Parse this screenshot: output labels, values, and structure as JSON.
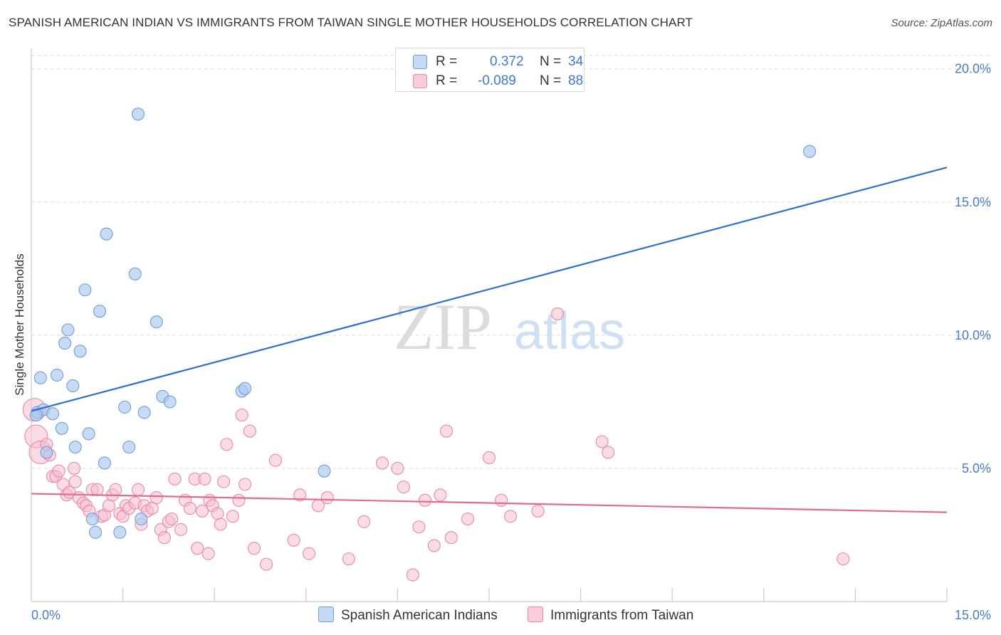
{
  "title": "SPANISH AMERICAN INDIAN VS IMMIGRANTS FROM TAIWAN SINGLE MOTHER HOUSEHOLDS CORRELATION CHART",
  "source": "Source: ZipAtlas.com",
  "watermark": {
    "zip": "ZIP",
    "atlas": "atlas"
  },
  "legend": {
    "series1": {
      "r_label": "R =",
      "r_value": "0.372",
      "n_label": "N =",
      "n_value": "34"
    },
    "series2": {
      "r_label": "R =",
      "r_value": "-0.089",
      "n_label": "N =",
      "n_value": "88"
    }
  },
  "colors": {
    "blue_fill": "#aac8f0",
    "blue_stroke": "#6f9fd8",
    "blue_line": "#2f6fcc",
    "pink_fill": "#f6bfd0",
    "pink_stroke": "#e88aa8",
    "pink_line": "#e36a95",
    "axis_text": "#4a7cc4",
    "grid": "#dddddd"
  },
  "chart_data": {
    "type": "scatter",
    "title": "SPANISH AMERICAN INDIAN VS IMMIGRANTS FROM TAIWAN SINGLE MOTHER HOUSEHOLDS CORRELATION CHART",
    "xlabel": "",
    "ylabel": "Single Mother Households",
    "xlim": [
      0,
      15
    ],
    "ylim": [
      0,
      20.5
    ],
    "x_tick_labels": [
      "0.0%",
      "15.0%"
    ],
    "y_ticks": [
      5,
      10,
      15,
      20
    ],
    "y_tick_labels": [
      "5.0%",
      "10.0%",
      "15.0%",
      "20.0%"
    ],
    "grid": true,
    "legend_position": "bottom",
    "series": [
      {
        "name": "Spanish American Indians",
        "color": "#aac8f0",
        "trend": {
          "x": [
            0,
            15
          ],
          "y": [
            7.15,
            16.3
          ]
        },
        "points": [
          {
            "x": 0.1,
            "y": 7.1
          },
          {
            "x": 0.15,
            "y": 8.4
          },
          {
            "x": 0.2,
            "y": 7.2
          },
          {
            "x": 0.25,
            "y": 5.6
          },
          {
            "x": 0.35,
            "y": 7.05
          },
          {
            "x": 0.42,
            "y": 8.5
          },
          {
            "x": 0.5,
            "y": 6.5
          },
          {
            "x": 0.55,
            "y": 9.7
          },
          {
            "x": 0.6,
            "y": 10.2
          },
          {
            "x": 0.68,
            "y": 8.1
          },
          {
            "x": 0.72,
            "y": 5.8
          },
          {
            "x": 0.8,
            "y": 9.4
          },
          {
            "x": 0.88,
            "y": 11.7
          },
          {
            "x": 0.94,
            "y": 6.3
          },
          {
            "x": 1.0,
            "y": 3.1
          },
          {
            "x": 1.05,
            "y": 2.6
          },
          {
            "x": 1.12,
            "y": 10.9
          },
          {
            "x": 1.2,
            "y": 5.2
          },
          {
            "x": 1.23,
            "y": 13.8
          },
          {
            "x": 1.45,
            "y": 2.6
          },
          {
            "x": 1.53,
            "y": 7.3
          },
          {
            "x": 1.6,
            "y": 5.8
          },
          {
            "x": 1.7,
            "y": 12.3
          },
          {
            "x": 1.75,
            "y": 18.3
          },
          {
            "x": 1.8,
            "y": 3.1
          },
          {
            "x": 1.85,
            "y": 7.1
          },
          {
            "x": 2.05,
            "y": 10.5
          },
          {
            "x": 2.15,
            "y": 7.7
          },
          {
            "x": 2.27,
            "y": 7.5
          },
          {
            "x": 3.45,
            "y": 7.9
          },
          {
            "x": 3.5,
            "y": 8.0
          },
          {
            "x": 4.8,
            "y": 4.9
          },
          {
            "x": 12.75,
            "y": 16.9
          },
          {
            "x": 0.08,
            "y": 7.0
          }
        ]
      },
      {
        "name": "Immigrants from Taiwan",
        "color": "#f6bfd0",
        "trend": {
          "x": [
            0,
            15
          ],
          "y": [
            4.05,
            3.35
          ]
        },
        "points": [
          {
            "x": 0.05,
            "y": 7.2
          },
          {
            "x": 0.08,
            "y": 6.2
          },
          {
            "x": 0.15,
            "y": 5.6
          },
          {
            "x": 0.25,
            "y": 5.9
          },
          {
            "x": 0.3,
            "y": 5.5
          },
          {
            "x": 0.35,
            "y": 4.7
          },
          {
            "x": 0.4,
            "y": 4.7
          },
          {
            "x": 0.45,
            "y": 4.9
          },
          {
            "x": 0.52,
            "y": 4.4
          },
          {
            "x": 0.58,
            "y": 4.0
          },
          {
            "x": 0.62,
            "y": 4.1
          },
          {
            "x": 0.7,
            "y": 5.0
          },
          {
            "x": 0.72,
            "y": 4.5
          },
          {
            "x": 0.78,
            "y": 3.9
          },
          {
            "x": 0.85,
            "y": 3.7
          },
          {
            "x": 0.9,
            "y": 3.6
          },
          {
            "x": 0.95,
            "y": 3.4
          },
          {
            "x": 1.0,
            "y": 4.2
          },
          {
            "x": 1.08,
            "y": 4.2
          },
          {
            "x": 1.15,
            "y": 3.2
          },
          {
            "x": 1.2,
            "y": 3.25
          },
          {
            "x": 1.27,
            "y": 3.6
          },
          {
            "x": 1.33,
            "y": 4.0
          },
          {
            "x": 1.38,
            "y": 4.2
          },
          {
            "x": 1.45,
            "y": 3.3
          },
          {
            "x": 1.5,
            "y": 3.2
          },
          {
            "x": 1.55,
            "y": 3.6
          },
          {
            "x": 1.6,
            "y": 3.5
          },
          {
            "x": 1.7,
            "y": 3.7
          },
          {
            "x": 1.75,
            "y": 4.2
          },
          {
            "x": 1.8,
            "y": 2.9
          },
          {
            "x": 1.85,
            "y": 3.6
          },
          {
            "x": 1.9,
            "y": 3.4
          },
          {
            "x": 1.98,
            "y": 3.5
          },
          {
            "x": 2.05,
            "y": 3.9
          },
          {
            "x": 2.12,
            "y": 2.7
          },
          {
            "x": 2.18,
            "y": 2.4
          },
          {
            "x": 2.25,
            "y": 3.0
          },
          {
            "x": 2.3,
            "y": 3.1
          },
          {
            "x": 2.35,
            "y": 4.6
          },
          {
            "x": 2.45,
            "y": 2.7
          },
          {
            "x": 2.52,
            "y": 3.8
          },
          {
            "x": 2.6,
            "y": 3.5
          },
          {
            "x": 2.68,
            "y": 4.6
          },
          {
            "x": 2.72,
            "y": 2.0
          },
          {
            "x": 2.8,
            "y": 3.4
          },
          {
            "x": 2.84,
            "y": 4.6
          },
          {
            "x": 2.9,
            "y": 1.8
          },
          {
            "x": 2.92,
            "y": 3.8
          },
          {
            "x": 2.97,
            "y": 3.6
          },
          {
            "x": 3.05,
            "y": 3.3
          },
          {
            "x": 3.1,
            "y": 2.9
          },
          {
            "x": 3.15,
            "y": 4.5
          },
          {
            "x": 3.2,
            "y": 5.9
          },
          {
            "x": 3.3,
            "y": 3.2
          },
          {
            "x": 3.4,
            "y": 3.8
          },
          {
            "x": 3.45,
            "y": 7.0
          },
          {
            "x": 3.5,
            "y": 4.4
          },
          {
            "x": 3.58,
            "y": 6.4
          },
          {
            "x": 3.65,
            "y": 2.0
          },
          {
            "x": 3.85,
            "y": 1.4
          },
          {
            "x": 4.0,
            "y": 5.3
          },
          {
            "x": 4.3,
            "y": 2.3
          },
          {
            "x": 4.4,
            "y": 4.0
          },
          {
            "x": 4.55,
            "y": 1.8
          },
          {
            "x": 4.7,
            "y": 3.6
          },
          {
            "x": 4.85,
            "y": 3.9
          },
          {
            "x": 5.2,
            "y": 1.6
          },
          {
            "x": 5.45,
            "y": 3.0
          },
          {
            "x": 5.75,
            "y": 5.2
          },
          {
            "x": 6.0,
            "y": 5.0
          },
          {
            "x": 6.1,
            "y": 4.3
          },
          {
            "x": 6.25,
            "y": 1.0
          },
          {
            "x": 6.35,
            "y": 2.8
          },
          {
            "x": 6.45,
            "y": 3.8
          },
          {
            "x": 6.6,
            "y": 2.1
          },
          {
            "x": 6.7,
            "y": 4.0
          },
          {
            "x": 6.8,
            "y": 6.4
          },
          {
            "x": 6.88,
            "y": 2.4
          },
          {
            "x": 7.15,
            "y": 3.1
          },
          {
            "x": 7.5,
            "y": 5.4
          },
          {
            "x": 7.7,
            "y": 3.8
          },
          {
            "x": 7.85,
            "y": 3.2
          },
          {
            "x": 8.3,
            "y": 3.4
          },
          {
            "x": 8.62,
            "y": 10.8
          },
          {
            "x": 9.35,
            "y": 6.0
          },
          {
            "x": 9.45,
            "y": 5.6
          },
          {
            "x": 13.3,
            "y": 1.6
          }
        ]
      }
    ]
  }
}
